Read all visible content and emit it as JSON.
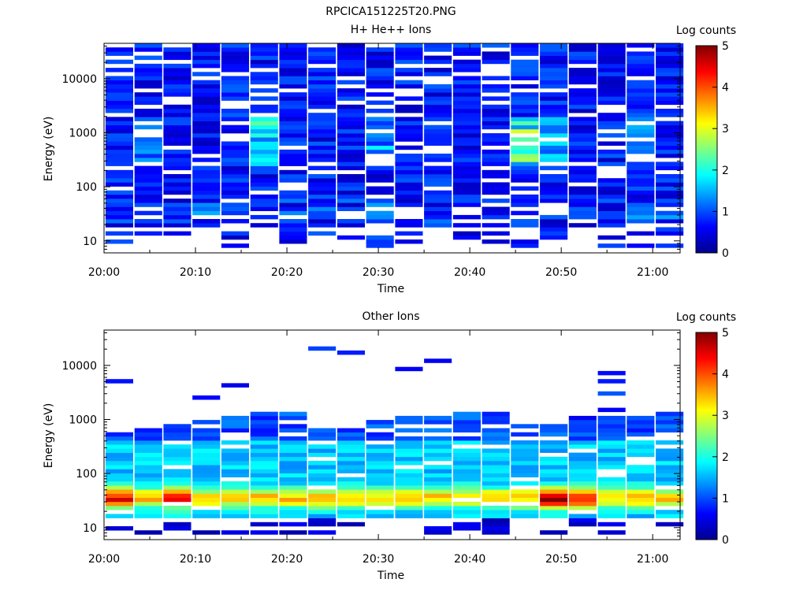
{
  "figure_title": "RPCICA151225T20.PNG",
  "chart_data": [
    {
      "type": "heatmap",
      "title": "H+ He++ Ions",
      "xlabel": "Time",
      "ylabel": "Energy (eV)",
      "xticks": [
        "20:00",
        "20:10",
        "20:20",
        "20:30",
        "20:40",
        "20:50",
        "21:00"
      ],
      "xrange": [
        "20:00",
        "21:03"
      ],
      "yscale": "log",
      "yrange": [
        6,
        45000
      ],
      "yticks": [
        "10",
        "100",
        "1000",
        "10000"
      ],
      "time_bins": [
        "20:01:40",
        "20:04:50",
        "20:08:00",
        "20:11:10",
        "20:14:20",
        "20:17:30",
        "20:20:40",
        "20:23:50",
        "20:27:00",
        "20:30:10",
        "20:33:20",
        "20:36:30",
        "20:39:40",
        "20:42:50",
        "20:46:00",
        "20:49:10",
        "20:52:20",
        "20:55:30",
        "20:58:40",
        "21:01:50"
      ],
      "empty_time_bins": [
        "20:00:00"
      ],
      "colorbar": {
        "label": "Log counts",
        "min": 0,
        "max": 5,
        "ticks": [
          "0",
          "1",
          "2",
          "3",
          "4",
          "5"
        ]
      },
      "grid": false,
      "notes": "Dense low-count (log 0-1) coverage across all energies; enhancements to log ~1.5-2.5 near 300-1500 eV around 20:03, 20:16 and 20:44-20:46; lowest energy channels mostly empty."
    },
    {
      "type": "heatmap",
      "title": "Other Ions",
      "xlabel": "Time",
      "ylabel": "Energy (eV)",
      "xticks": [
        "20:00",
        "20:10",
        "20:20",
        "20:30",
        "20:40",
        "20:50",
        "21:00"
      ],
      "xrange": [
        "20:00",
        "21:03"
      ],
      "yscale": "log",
      "yrange": [
        6,
        45000
      ],
      "yticks": [
        "10",
        "100",
        "1000",
        "10000"
      ],
      "time_bins": [
        "20:01:40",
        "20:04:50",
        "20:08:00",
        "20:11:10",
        "20:14:20",
        "20:17:30",
        "20:20:40",
        "20:23:50",
        "20:27:00",
        "20:30:10",
        "20:33:20",
        "20:36:30",
        "20:39:40",
        "20:42:50",
        "20:46:00",
        "20:49:10",
        "20:52:20",
        "20:55:30",
        "20:58:40",
        "21:01:50"
      ],
      "colorbar": {
        "label": "Log counts",
        "min": 0,
        "max": 5,
        "ticks": [
          "0",
          "1",
          "2",
          "3",
          "4",
          "5"
        ]
      },
      "grid": false,
      "notes": "Counts mostly below ~1500 eV; peak band around 25-50 eV reaching log ~3-3.8 near 20:02, 20:08 and 20:52; isolated high-energy single channels at ~3800-35000 eV."
    }
  ]
}
